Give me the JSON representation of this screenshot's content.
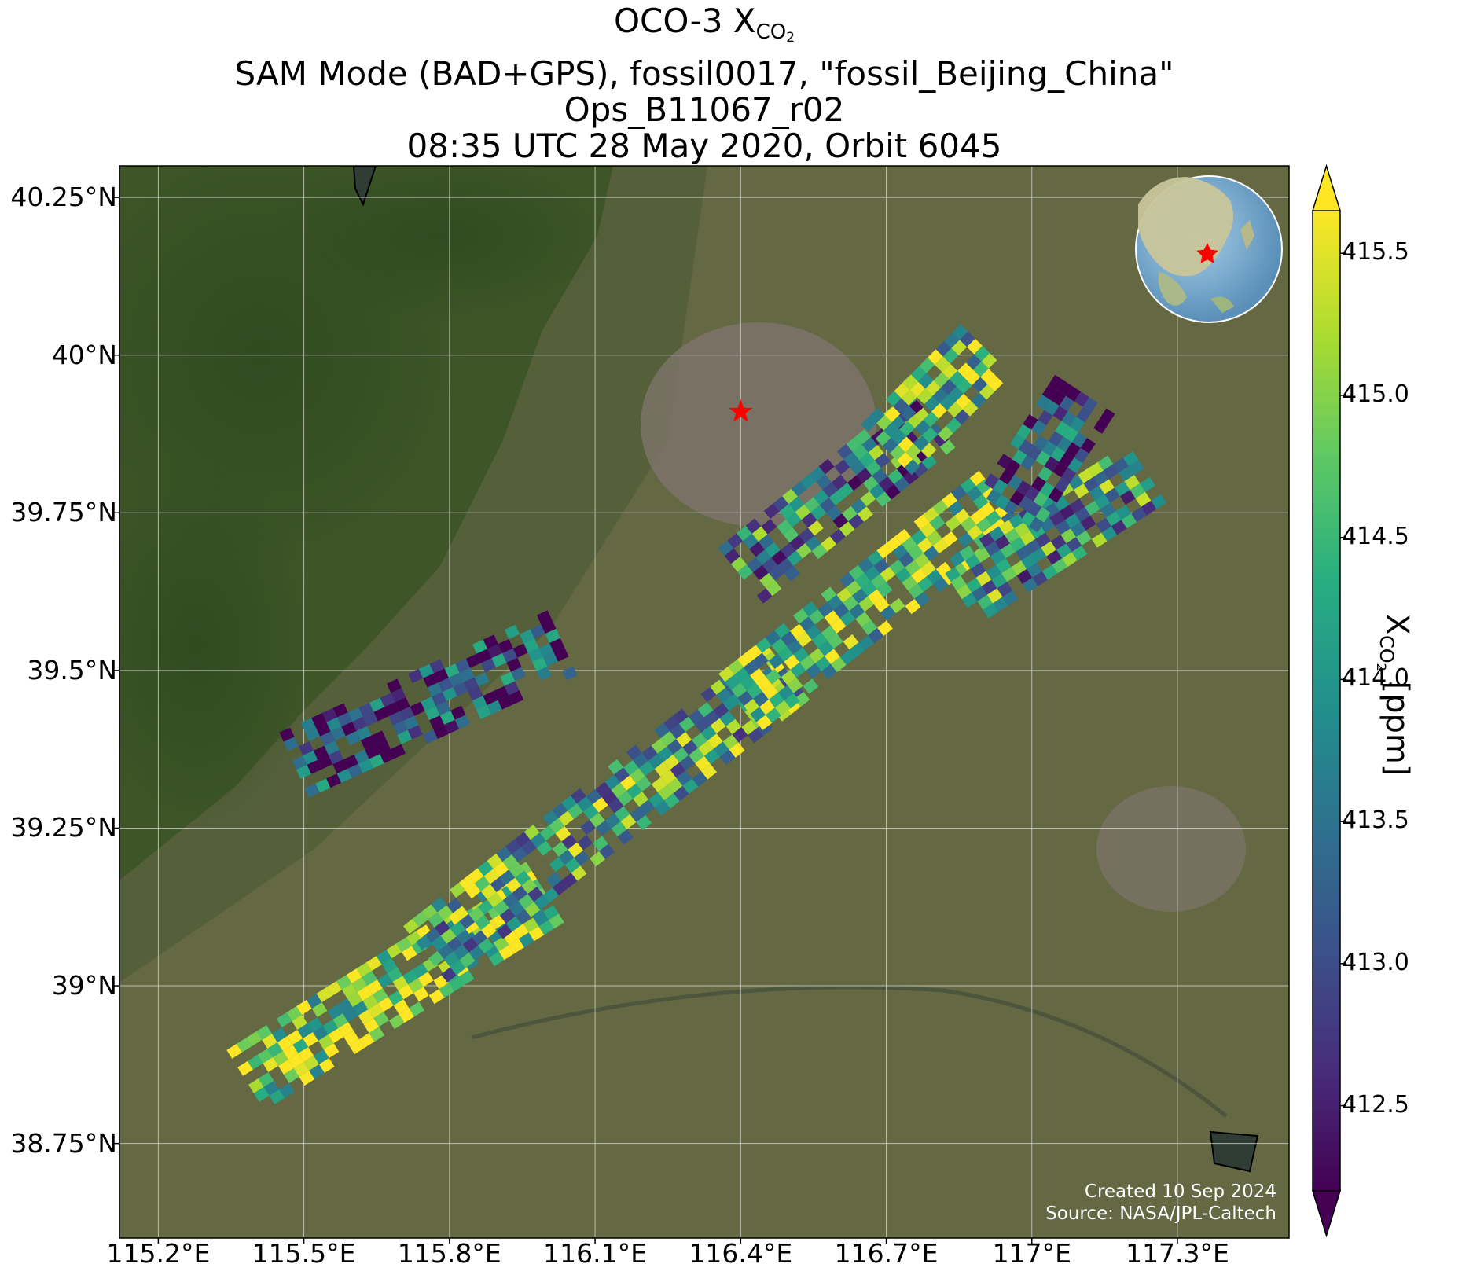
{
  "title": {
    "line1_main": "OCO-3 X",
    "line1_sub": "CO",
    "line1_subsub": "2",
    "line2": "SAM Mode (BAD+GPS), fossil0017, \"fossil_Beijing_China\"",
    "line3": "Ops_B11067_r02",
    "line4": "08:35 UTC 28 May 2020, Orbit 6045"
  },
  "map": {
    "lat_ticks": [
      "40.25°N",
      "40°N",
      "39.75°N",
      "39.5°N",
      "39.25°N",
      "39°N",
      "38.75°N"
    ],
    "lat_tick_values": [
      40.25,
      40.0,
      39.75,
      39.5,
      39.25,
      39.0,
      38.75
    ],
    "lon_ticks": [
      "115.2°E",
      "115.5°E",
      "115.8°E",
      "116.1°E",
      "116.4°E",
      "116.7°E",
      "117°E",
      "117.3°E"
    ],
    "lon_tick_values": [
      115.2,
      115.5,
      115.8,
      116.1,
      116.4,
      116.7,
      117.0,
      117.3
    ],
    "lon_range": [
      115.12,
      117.53
    ],
    "lat_range": [
      38.6,
      40.3
    ],
    "target_marker": {
      "lon": 116.4,
      "lat": 39.91,
      "color": "#ff0000",
      "icon": "red-star-icon"
    },
    "grid": true,
    "basemap": "satellite imagery",
    "inset": "globe-icon with red star over Beijing, top-right"
  },
  "colorbar": {
    "label_main": "X",
    "label_sub": "CO",
    "label_subsub": "2",
    "label_unit": " [ppm]",
    "ticks": [
      "415.5",
      "415.0",
      "414.5",
      "414.0",
      "413.5",
      "413.0",
      "412.5"
    ],
    "tick_values": [
      415.5,
      415.0,
      414.5,
      414.0,
      413.5,
      413.0,
      412.5
    ],
    "range": [
      412.2,
      415.65
    ],
    "extend": "both",
    "colormap": "viridis"
  },
  "credits": {
    "created": "Created 10 Sep 2024",
    "source": "Source: NASA/JPL-Caltech"
  },
  "chart_data": {
    "type": "heatmap",
    "variable": "XCO2",
    "units": "ppm",
    "footprints_description": "diagonal swaths of OCO-3 soundings SW to NE across the Beijing region",
    "swaths": [
      {
        "from": [
          115.38,
          38.85
        ],
        "to": [
          116.0,
          39.15
        ],
        "typical_xco2": 415.2
      },
      {
        "from": [
          115.75,
          39.05
        ],
        "to": [
          116.5,
          39.5
        ],
        "typical_xco2": 414.2
      },
      {
        "from": [
          115.48,
          39.35
        ],
        "to": [
          116.05,
          39.55
        ],
        "typical_xco2": 412.8
      },
      {
        "from": [
          116.4,
          39.45
        ],
        "to": [
          116.95,
          39.78
        ],
        "typical_xco2": 414.8
      },
      {
        "from": [
          116.4,
          39.65
        ],
        "to": [
          116.8,
          39.9
        ],
        "typical_xco2": 413.8
      },
      {
        "from": [
          116.7,
          39.85
        ],
        "to": [
          116.92,
          40.02
        ],
        "typical_xco2": 414.5
      },
      {
        "from": [
          116.85,
          39.62
        ],
        "to": [
          117.25,
          39.82
        ],
        "typical_xco2": 414.0
      },
      {
        "from": [
          116.95,
          39.75
        ],
        "to": [
          117.12,
          39.95
        ],
        "typical_xco2": 413.2
      }
    ]
  }
}
